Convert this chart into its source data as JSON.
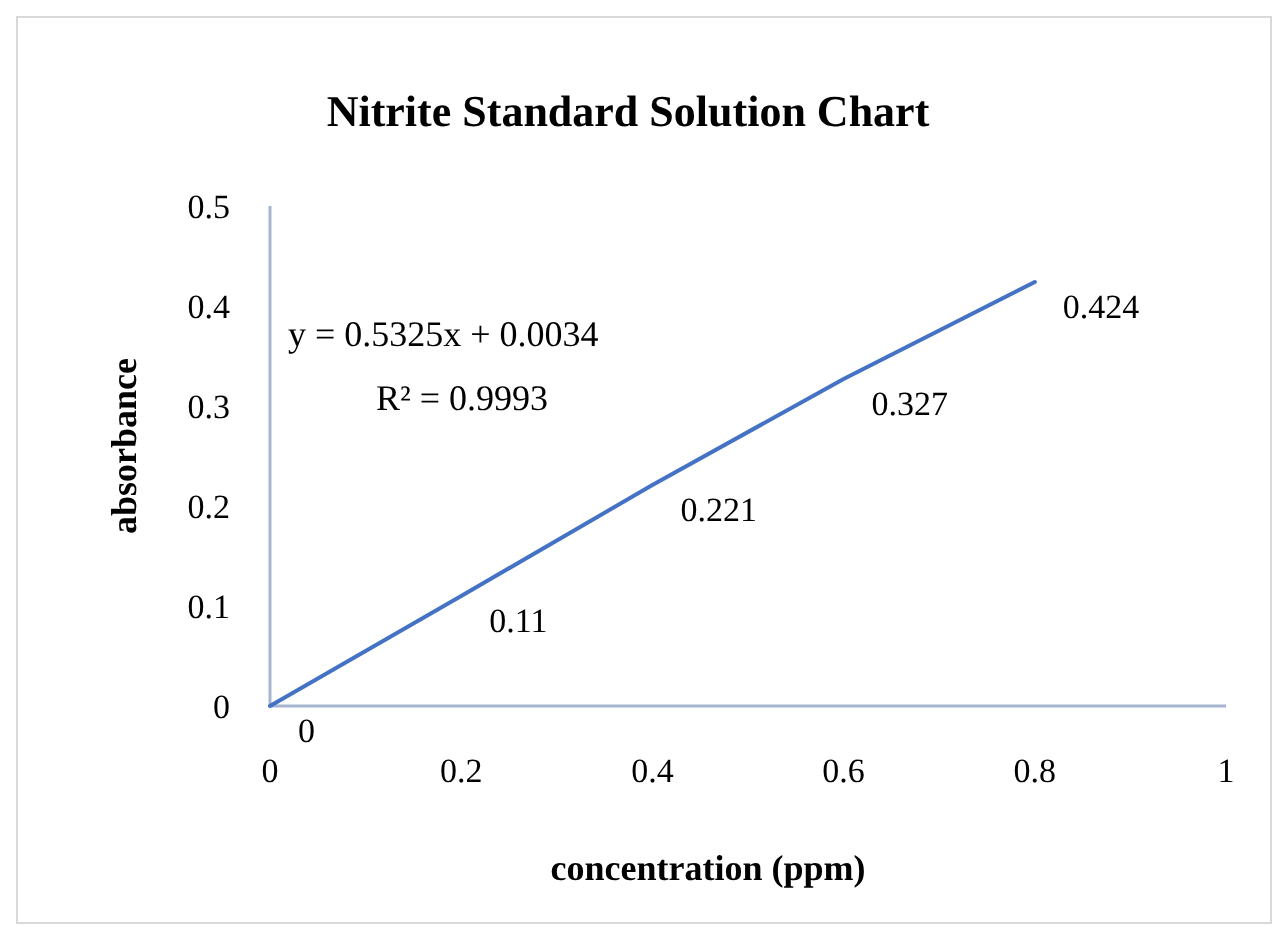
{
  "chart_data": {
    "type": "line",
    "title": "Nitrite Standard Solution Chart",
    "xlabel": "concentration (ppm)",
    "ylabel": "absorbance",
    "x": [
      0,
      0.2,
      0.4,
      0.6,
      0.8
    ],
    "series": [
      {
        "color": "#4472c4",
        "values": [
          0,
          0.11,
          0.221,
          0.327,
          0.424
        ]
      }
    ],
    "data_labels": true,
    "marker": "none",
    "line_style": "solid",
    "xlim": [
      0,
      1
    ],
    "xticks": [
      0,
      0.2,
      0.4,
      0.6,
      0.8,
      1
    ],
    "ylim": [
      0,
      0.5
    ],
    "yticks": [
      0,
      0.1,
      0.2,
      0.3,
      0.4,
      0.5
    ],
    "annotations": [
      "y = 0.5325x + 0.0034",
      "R² = 0.9993"
    ]
  }
}
